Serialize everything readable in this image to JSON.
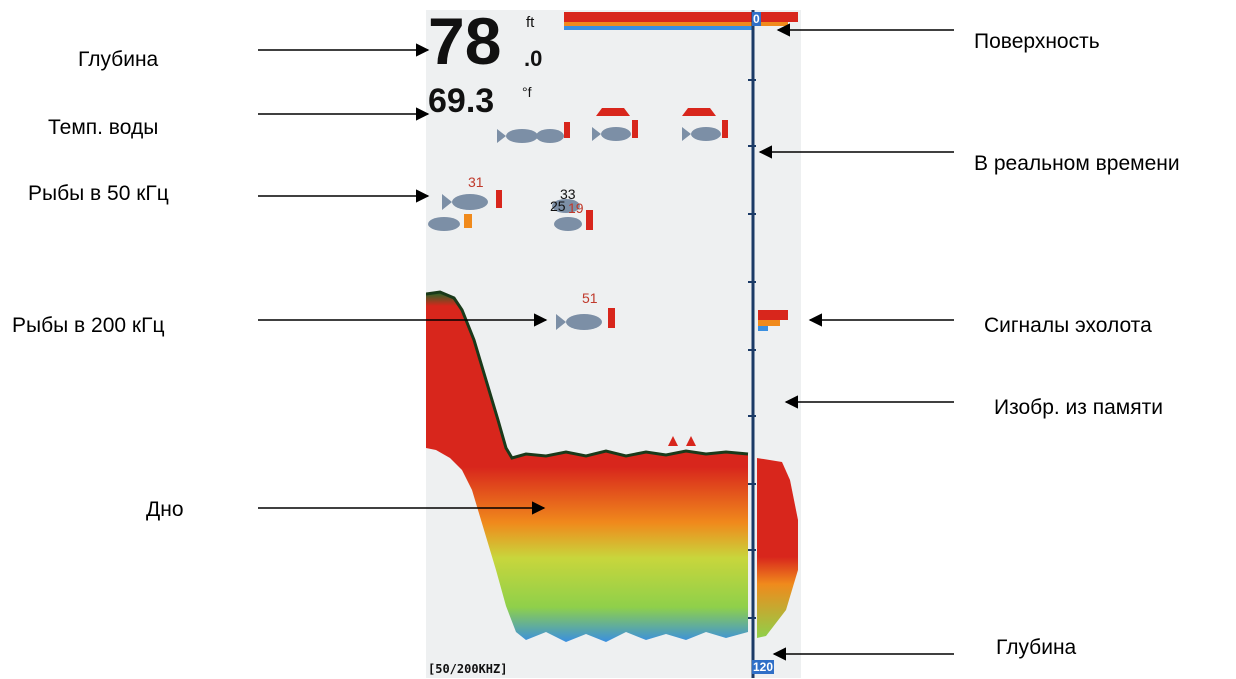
{
  "labels": {
    "depth_left": "Глубина",
    "water_temp": "Темп. воды",
    "fish_50": "Рыбы в 50 кГц",
    "fish_200": "Рыбы в 200 кГц",
    "bottom": "Дно",
    "surface": "Поверхность",
    "realtime": "В реальном времени",
    "sonar_signals": "Сигналы эхолота",
    "memory_image": "Изобр. из памяти",
    "depth_right": "Глубина"
  },
  "screen": {
    "depth_value": "78",
    "depth_decimal": ".0",
    "depth_unit": "ft",
    "temp_value": "69.3",
    "temp_unit": "°f",
    "frequency": "[50/200KHZ]",
    "scale_top": "0",
    "scale_bottom": "120",
    "fish_labels": [
      "31",
      "33",
      "25",
      "19",
      "51"
    ]
  },
  "colors": {
    "echo_strong": "#d8261c",
    "echo_mid": "#f08a1c",
    "echo_weak": "#8fd04a",
    "echo_faint": "#3a8fe0",
    "scale_blue": "#2f6fc7"
  }
}
